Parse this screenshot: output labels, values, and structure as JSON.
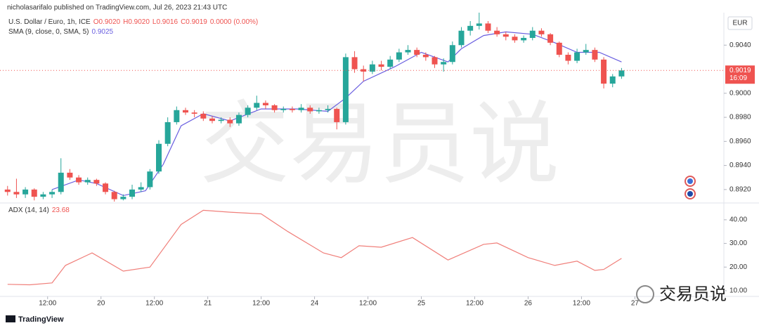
{
  "header": {
    "byline": "nicholasarifalo published on TradingView.com, Jul 26, 2023 21:43 UTC",
    "watermark": "交易员说",
    "brand": "TradingView",
    "wechat_label": "交易员说"
  },
  "chart_data": [
    {
      "type": "candlestick",
      "title": "U.S. Dollar / Euro, 1h, ICE",
      "ohlc_labels": [
        "O0.9020",
        "H0.9020",
        "L0.9016",
        "C0.9019",
        "0.0000 (0.00%)"
      ],
      "currency": "EUR",
      "up_color": "#26a69a",
      "down_color": "#ef5350",
      "x": [
        0,
        2,
        4,
        6,
        8,
        10,
        12,
        14,
        16,
        18,
        20,
        22,
        24,
        26,
        28,
        30,
        32,
        34,
        36,
        38,
        40,
        42,
        44,
        46,
        48,
        50,
        52,
        54,
        56,
        58,
        60,
        62,
        64,
        66,
        68,
        70,
        72,
        74,
        76,
        78,
        80,
        82,
        84,
        86,
        88,
        90,
        92,
        94,
        96,
        98,
        100,
        102,
        104,
        106,
        108,
        110,
        112,
        114,
        116,
        118,
        120,
        122,
        124,
        126,
        128,
        130,
        132,
        134,
        136,
        138
      ],
      "open": [
        0.892,
        0.8918,
        0.8916,
        0.892,
        0.8914,
        0.8916,
        0.8918,
        0.8934,
        0.893,
        0.8926,
        0.8928,
        0.8925,
        0.8918,
        0.8912,
        0.8914,
        0.892,
        0.8922,
        0.8935,
        0.8958,
        0.8976,
        0.8986,
        0.8984,
        0.8983,
        0.8979,
        0.8977,
        0.8978,
        0.8975,
        0.8982,
        0.8988,
        0.8992,
        0.899,
        0.8986,
        0.8987,
        0.8986,
        0.8988,
        0.8985,
        0.8986,
        0.8987,
        0.8976,
        0.903,
        0.902,
        0.9018,
        0.9024,
        0.9022,
        0.9028,
        0.9034,
        0.9036,
        0.9032,
        0.903,
        0.9024,
        0.9026,
        0.904,
        0.9052,
        0.9056,
        0.9058,
        0.9052,
        0.9049,
        0.9047,
        0.9044,
        0.9046,
        0.9052,
        0.9049,
        0.9042,
        0.9032,
        0.9027,
        0.9034,
        0.9036,
        0.9028,
        0.9008,
        0.9014
      ],
      "high": [
        0.8923,
        0.8929,
        0.8922,
        0.8921,
        0.8918,
        0.892,
        0.8946,
        0.8937,
        0.8932,
        0.893,
        0.8929,
        0.8926,
        0.8919,
        0.8916,
        0.8924,
        0.8926,
        0.8937,
        0.8961,
        0.898,
        0.8989,
        0.8988,
        0.8986,
        0.8985,
        0.8981,
        0.898,
        0.898,
        0.8984,
        0.899,
        0.8998,
        0.8994,
        0.8991,
        0.8989,
        0.8989,
        0.8991,
        0.899,
        0.8988,
        0.899,
        0.8988,
        0.9033,
        0.9035,
        0.9023,
        0.9027,
        0.9027,
        0.9031,
        0.9037,
        0.904,
        0.9038,
        0.9034,
        0.9031,
        0.9029,
        0.9043,
        0.9055,
        0.906,
        0.9067,
        0.906,
        0.9055,
        0.9051,
        0.9049,
        0.9048,
        0.9055,
        0.9054,
        0.905,
        0.9043,
        0.9034,
        0.9037,
        0.9041,
        0.9038,
        0.903,
        0.9016,
        0.9021
      ],
      "low": [
        0.8915,
        0.8913,
        0.8913,
        0.8911,
        0.8912,
        0.8913,
        0.8916,
        0.8928,
        0.8924,
        0.8924,
        0.8923,
        0.8916,
        0.891,
        0.8911,
        0.8912,
        0.8918,
        0.892,
        0.8933,
        0.8956,
        0.8974,
        0.8982,
        0.898,
        0.8977,
        0.8975,
        0.8975,
        0.8972,
        0.8973,
        0.898,
        0.8986,
        0.8987,
        0.8984,
        0.8984,
        0.8984,
        0.8984,
        0.8983,
        0.8983,
        0.8984,
        0.897,
        0.8974,
        0.9017,
        0.901,
        0.9016,
        0.9019,
        0.902,
        0.9026,
        0.9032,
        0.903,
        0.9027,
        0.9021,
        0.9018,
        0.9024,
        0.9038,
        0.9048,
        0.9053,
        0.905,
        0.9047,
        0.9044,
        0.9042,
        0.9042,
        0.9044,
        0.9047,
        0.904,
        0.903,
        0.9024,
        0.9025,
        0.9032,
        0.9026,
        0.9004,
        0.9005,
        0.9012
      ],
      "close": [
        0.8918,
        0.8916,
        0.892,
        0.8914,
        0.8916,
        0.8918,
        0.8934,
        0.893,
        0.8926,
        0.8928,
        0.8925,
        0.8918,
        0.8912,
        0.8914,
        0.892,
        0.8922,
        0.8935,
        0.8958,
        0.8976,
        0.8986,
        0.8984,
        0.8983,
        0.8979,
        0.8977,
        0.8978,
        0.8975,
        0.8982,
        0.8988,
        0.8992,
        0.899,
        0.8986,
        0.8987,
        0.8986,
        0.8988,
        0.8985,
        0.8986,
        0.8987,
        0.8976,
        0.903,
        0.902,
        0.9018,
        0.9024,
        0.9022,
        0.9028,
        0.9034,
        0.9036,
        0.9032,
        0.903,
        0.9024,
        0.9026,
        0.904,
        0.9052,
        0.9056,
        0.9058,
        0.9052,
        0.9049,
        0.9047,
        0.9044,
        0.9046,
        0.9052,
        0.9049,
        0.9042,
        0.9032,
        0.9027,
        0.9034,
        0.9036,
        0.9028,
        0.9008,
        0.9014,
        0.9019
      ],
      "overlays": [
        {
          "name": "SMA (9, close, 0, SMA, 5)",
          "legend_value": "0.9025",
          "color": "#6a5fe0",
          "x": [
            10,
            16,
            20,
            26,
            31,
            35,
            39,
            44,
            50,
            57,
            65,
            72,
            76,
            80,
            87,
            93,
            99,
            102,
            107,
            112,
            118,
            123,
            128,
            133,
            138
          ],
          "values": [
            0.892,
            0.8928,
            0.8925,
            0.8915,
            0.8919,
            0.8941,
            0.8973,
            0.8983,
            0.8977,
            0.8987,
            0.8987,
            0.8985,
            0.8996,
            0.901,
            0.9022,
            0.9034,
            0.9026,
            0.9037,
            0.9048,
            0.9051,
            0.9049,
            0.9042,
            0.9034,
            0.9034,
            0.9026
          ]
        }
      ],
      "last_price": {
        "value": 0.9019,
        "label": "0.9019"
      },
      "countdown": "16:09",
      "xlim": [
        -1.7,
        161
      ],
      "ylim": [
        0.891,
        0.9067
      ],
      "yticks": [
        {
          "value": 0.892,
          "label": "0.8920"
        },
        {
          "value": 0.894,
          "label": "0.8940"
        },
        {
          "value": 0.896,
          "label": "0.8960"
        },
        {
          "value": 0.898,
          "label": "0.8980"
        },
        {
          "value": 0.9,
          "label": "0.9000"
        },
        {
          "value": 0.904,
          "label": "0.9040"
        }
      ],
      "xticks": [
        {
          "value": 9,
          "label": "12:00"
        },
        {
          "value": 21,
          "label": "20"
        },
        {
          "value": 33,
          "label": "12:00"
        },
        {
          "value": 45,
          "label": "21"
        },
        {
          "value": 57,
          "label": "12:00"
        },
        {
          "value": 69,
          "label": "24"
        },
        {
          "value": 81,
          "label": "12:00"
        },
        {
          "value": 93,
          "label": "25"
        },
        {
          "value": 105,
          "label": "12:00"
        },
        {
          "value": 117,
          "label": "26"
        },
        {
          "value": 129,
          "label": "12:00"
        },
        {
          "value": 141,
          "label": "27"
        }
      ],
      "grid": false
    },
    {
      "type": "line",
      "name": "ADX (14, 14)",
      "legend_value": "23.68",
      "color": "#f07f7a",
      "x": [
        0,
        5,
        10,
        13,
        19,
        26,
        32,
        39,
        44,
        50,
        57,
        63,
        71,
        75,
        79,
        84,
        91,
        99,
        107,
        110,
        117,
        123,
        128,
        132,
        134,
        138
      ],
      "values": [
        12.7,
        12.5,
        13.3,
        20.7,
        26,
        18.3,
        20,
        38,
        44,
        43.2,
        42.5,
        35,
        26,
        24,
        29,
        28.4,
        32.5,
        23,
        29.6,
        30.2,
        24,
        20.7,
        22.5,
        18.6,
        19,
        23.68
      ],
      "xlim": [
        -1.7,
        161
      ],
      "ylim": [
        8.2,
        46.8
      ],
      "yticks": [
        {
          "value": 10,
          "label": "10.00"
        },
        {
          "value": 20,
          "label": "20.00"
        },
        {
          "value": 30,
          "label": "30.00"
        },
        {
          "value": 40,
          "label": "40.00"
        }
      ],
      "grid": false
    }
  ]
}
